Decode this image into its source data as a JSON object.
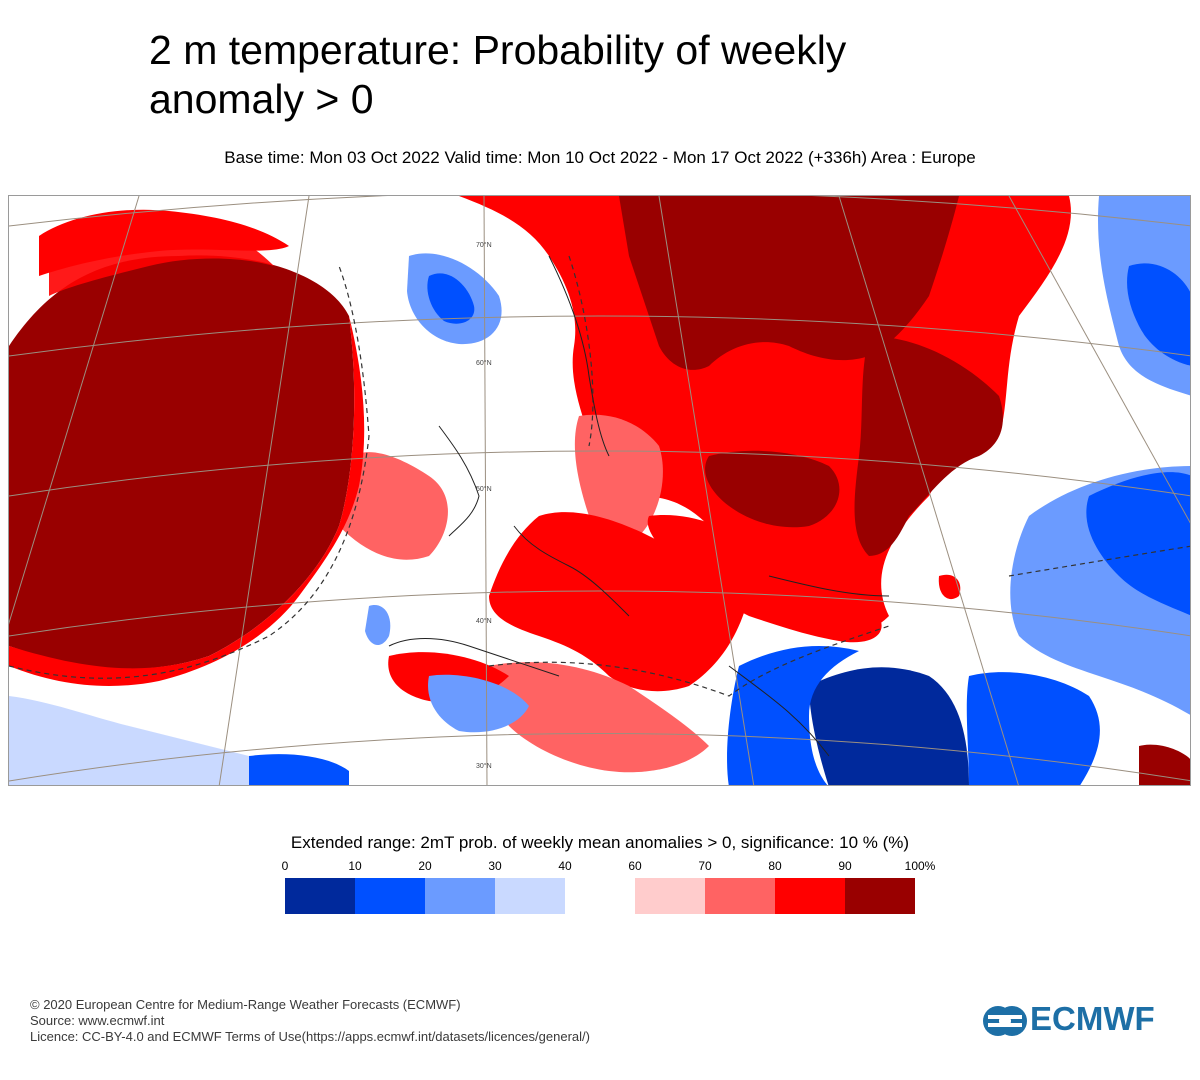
{
  "title": {
    "line1": "2 m temperature: Probability of weekly",
    "line2": "anomaly > 0"
  },
  "subtitle": "Base time: Mon 03 Oct 2022 Valid time: Mon 10 Oct 2022 - Mon 17 Oct 2022 (+336h) Area : Europe",
  "map": {
    "area": "Europe",
    "latitude_labels": [
      "70°N",
      "60°N",
      "50°N",
      "40°N",
      "30°N"
    ]
  },
  "legend": {
    "title": "Extended range: 2mT prob. of weekly mean anomalies > 0, significance: 10 % (%)",
    "ticks": [
      "0",
      "10",
      "20",
      "30",
      "40",
      "60",
      "70",
      "80",
      "90",
      "100%"
    ],
    "bins": [
      {
        "range": "0-10",
        "color": "#00299c"
      },
      {
        "range": "10-20",
        "color": "#0050ff"
      },
      {
        "range": "20-30",
        "color": "#6b9bff"
      },
      {
        "range": "30-40",
        "color": "#c9d9ff"
      },
      {
        "range": "60-70",
        "color": "#ffcccc"
      },
      {
        "range": "70-80",
        "color": "#ff6363"
      },
      {
        "range": "80-90",
        "color": "#ff0000"
      },
      {
        "range": "90-100",
        "color": "#990000"
      }
    ]
  },
  "footer": {
    "line1": "© 2020 European Centre for Medium-Range Weather Forecasts (ECMWF)",
    "line2": "Source: www.ecmwf.int",
    "line3": "Licence: CC-BY-4.0 and ECMWF Terms of Use(https://apps.ecmwf.int/datasets/licences/general/)"
  },
  "logo": {
    "text": "ECMWF",
    "color": "#1d6fa6"
  }
}
